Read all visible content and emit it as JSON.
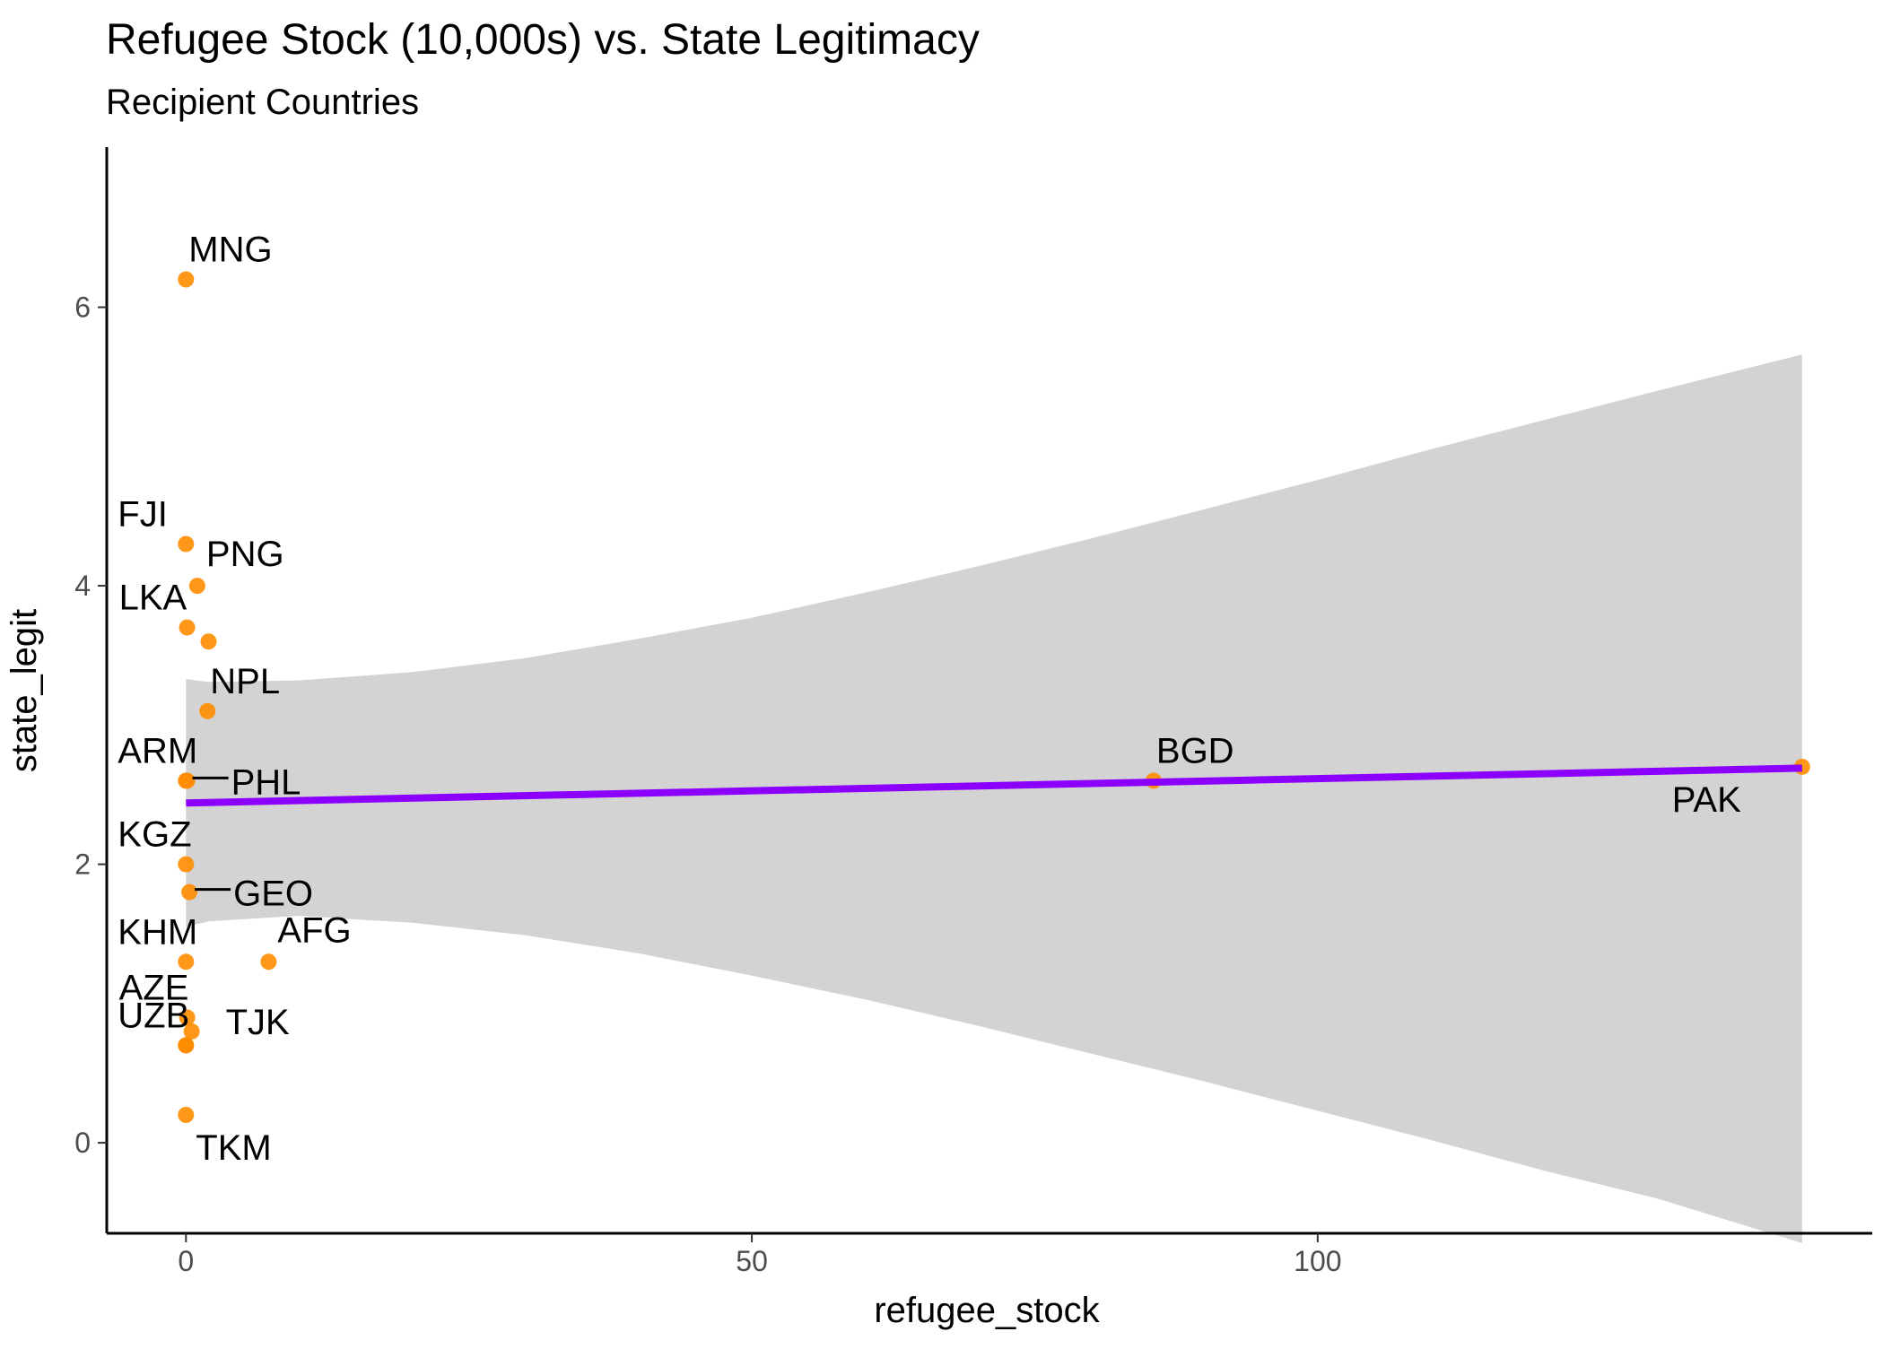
{
  "chart_data": {
    "type": "scatter",
    "title": "Refugee Stock (10,000s) vs. State Legitimacy",
    "subtitle": "Recipient Countries",
    "xlabel": "refugee_stock",
    "ylabel": "state_legit",
    "xlim": [
      -7,
      149
    ],
    "ylim": [
      -0.65,
      7.15
    ],
    "xticks": [
      0,
      50,
      100
    ],
    "yticks": [
      0,
      2,
      4,
      6
    ],
    "x_tick_labels": [
      "0",
      "50",
      "100"
    ],
    "y_tick_labels": [
      "0",
      "2",
      "4",
      "6"
    ],
    "grid": false,
    "legend": "none",
    "colors": {
      "point": "#ff8c00",
      "fit_line": "#8b00ff",
      "ribbon": "#d3d3d3",
      "axis": "#000000",
      "tick_text": "#4d4d4d"
    },
    "points": [
      {
        "label": "MNG",
        "x": 0.0,
        "y": 6.2,
        "label_pos": "above"
      },
      {
        "label": "FJI",
        "x": 0.0,
        "y": 4.3,
        "label_pos": "upper-left"
      },
      {
        "label": "PNG",
        "x": 1.0,
        "y": 4.0,
        "label_pos": "upper-right"
      },
      {
        "label": "LKA",
        "x": 0.1,
        "y": 3.7,
        "label_pos": "upper-left"
      },
      {
        "label": "",
        "x": 2.0,
        "y": 3.6,
        "label_pos": "none"
      },
      {
        "label": "NPL",
        "x": 1.9,
        "y": 3.1,
        "label_pos": "above"
      },
      {
        "label": "ARM",
        "x": 0.0,
        "y": 2.6,
        "label_pos": "upper-left"
      },
      {
        "label": "PHL",
        "x": 0.1,
        "y": 2.6,
        "label_pos": "leader-right"
      },
      {
        "label": "BGD",
        "x": 85.5,
        "y": 2.6,
        "label_pos": "above"
      },
      {
        "label": "PAK",
        "x": 142.8,
        "y": 2.7,
        "label_pos": "lower-left"
      },
      {
        "label": "KGZ",
        "x": 0.0,
        "y": 2.0,
        "label_pos": "upper-left"
      },
      {
        "label": "GEO",
        "x": 0.3,
        "y": 1.8,
        "label_pos": "leader-right"
      },
      {
        "label": "KHM",
        "x": 0.0,
        "y": 1.3,
        "label_pos": "upper-left"
      },
      {
        "label": "AFG",
        "x": 7.3,
        "y": 1.3,
        "label_pos": "upper-right"
      },
      {
        "label": "AZE",
        "x": 0.1,
        "y": 0.9,
        "label_pos": "upper-left"
      },
      {
        "label": "TJK",
        "x": 0.5,
        "y": 0.8,
        "label_pos": "right"
      },
      {
        "label": "",
        "x": 0.0,
        "y": 0.7,
        "label_pos": "none"
      },
      {
        "label": "UZB",
        "x": 0.0,
        "y": 0.7,
        "label_pos": "upper-left"
      },
      {
        "label": "TKM",
        "x": 0.0,
        "y": 0.2,
        "label_pos": "below-right"
      }
    ],
    "fit": {
      "method": "linear",
      "start": {
        "x": 0.0,
        "y": 2.44
      },
      "end": {
        "x": 142.8,
        "y": 2.69
      }
    },
    "confidence_band": [
      {
        "x": 0.0,
        "lower": 1.55,
        "upper": 3.33
      },
      {
        "x": 2.0,
        "lower": 1.59,
        "upper": 3.31
      },
      {
        "x": 10.0,
        "lower": 1.63,
        "upper": 3.32
      },
      {
        "x": 20.0,
        "lower": 1.58,
        "upper": 3.38
      },
      {
        "x": 30.0,
        "lower": 1.49,
        "upper": 3.48
      },
      {
        "x": 40.0,
        "lower": 1.36,
        "upper": 3.62
      },
      {
        "x": 50.0,
        "lower": 1.2,
        "upper": 3.77
      },
      {
        "x": 60.0,
        "lower": 1.03,
        "upper": 3.95
      },
      {
        "x": 70.0,
        "lower": 0.84,
        "upper": 4.14
      },
      {
        "x": 80.0,
        "lower": 0.64,
        "upper": 4.34
      },
      {
        "x": 90.0,
        "lower": 0.44,
        "upper": 4.55
      },
      {
        "x": 100.0,
        "lower": 0.23,
        "upper": 4.76
      },
      {
        "x": 110.0,
        "lower": 0.02,
        "upper": 4.98
      },
      {
        "x": 120.0,
        "lower": -0.2,
        "upper": 5.19
      },
      {
        "x": 130.0,
        "lower": -0.4,
        "upper": 5.4
      },
      {
        "x": 142.8,
        "lower": -0.72,
        "upper": 5.66
      }
    ]
  }
}
